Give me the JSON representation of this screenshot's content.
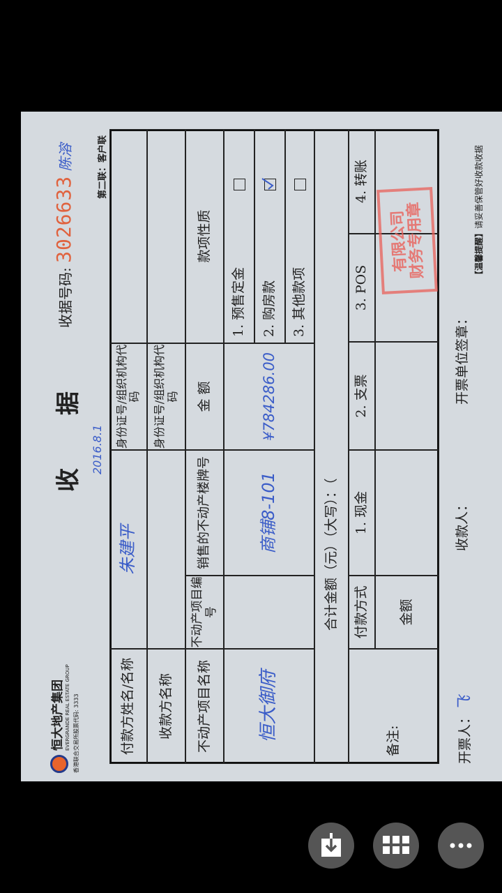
{
  "receipt": {
    "company": {
      "name_cn": "恒大地产集团",
      "name_en": "EVERGRANDE REAL ESTATE GROUP",
      "stock": "香港联合交易所股票代码: 3333"
    },
    "title_left": "收",
    "title_right": "据",
    "number_label": "收据号码:",
    "number": "3026633",
    "number_note": "陈溶",
    "copy_label": "第二联：客户联",
    "date": "2016.8.1",
    "labels": {
      "payer": "付款方姓名/名称",
      "payee": "收款方名称",
      "id_code": "身份证号/组织机构代码",
      "project_name": "不动产项目名称",
      "project_no": "不动产项目编号",
      "unit": "销售的不动产楼牌号",
      "amount": "金 额",
      "nature": "款项性质",
      "total": "合计金额（元）（大写）：（",
      "pay_method": "付款方式",
      "pay_amount": "金额",
      "remark": "备注:"
    },
    "values": {
      "payer": "朱建平",
      "project_name": "恒大御府",
      "unit": "商铺8-101",
      "amount": "¥784286.00"
    },
    "nature_options": [
      {
        "label": "1. 预售定金",
        "checked": false
      },
      {
        "label": "2. 购房款",
        "checked": true
      },
      {
        "label": "3. 其他款项",
        "checked": false
      }
    ],
    "pay_methods": [
      "1. 现金",
      "2. 支票",
      "3. POS",
      "4. 转账"
    ],
    "footer": {
      "issuer_label": "开票人：",
      "issuer_sig": "飞",
      "collector_label": "收款人：",
      "seal_label": "开票单位签章：",
      "reminder_tag": "【温馨提醒】",
      "reminder": "请妥善保管好收款收据"
    },
    "stamp": {
      "text": "有限公司 财务专用章",
      "color": "#e8605a"
    }
  },
  "viewer": {
    "buttons": [
      {
        "icon": "download-icon"
      },
      {
        "icon": "grid-icon"
      },
      {
        "icon": "more-icon"
      }
    ]
  }
}
